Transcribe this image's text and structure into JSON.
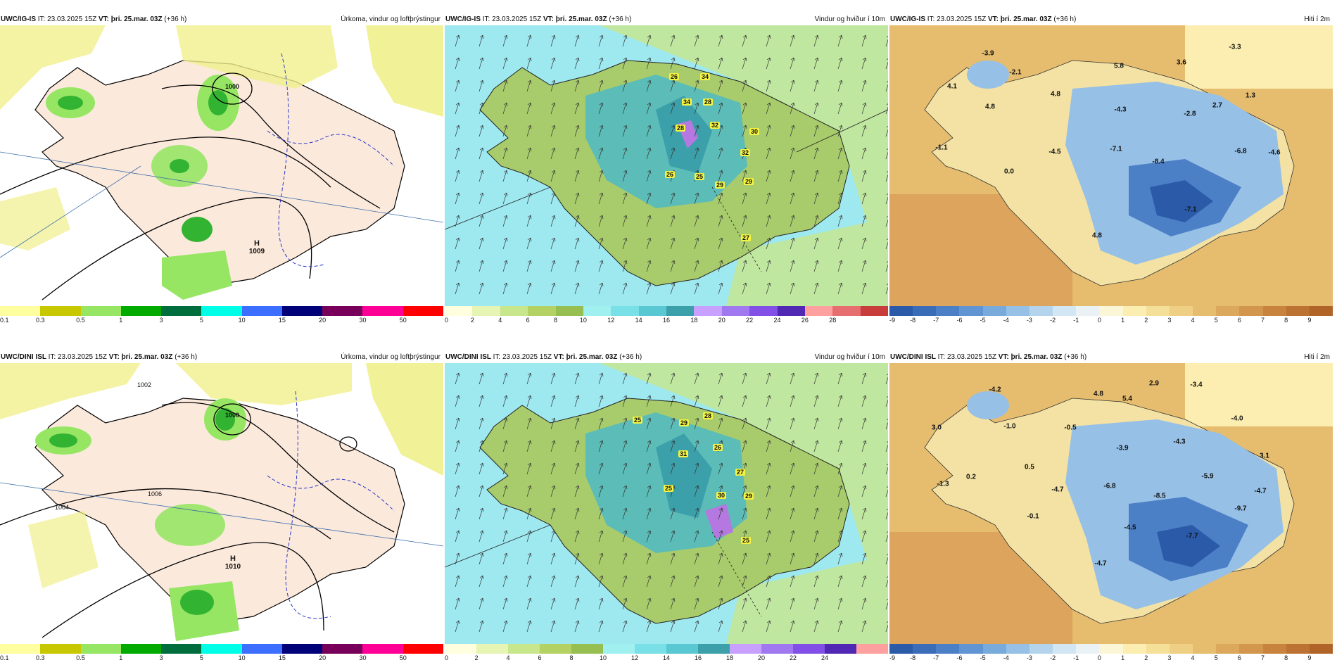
{
  "panels": {
    "top": {
      "precip": {
        "model": "UWC/IG-IS",
        "it_prefix": "IT:",
        "it_value": "23.03.2025 15Z",
        "vt_prefix": "VT:",
        "vt_value": "þri. 25.mar. 03Z",
        "lead": "(+36 h)",
        "title": "Úrkoma, vindur og loftþrýstingur",
        "pressure_high": "H",
        "pressure_high_value": "1009",
        "isobar_1000": "1000"
      },
      "wind": {
        "model": "UWC/IG-IS",
        "it_prefix": "IT:",
        "it_value": "23.03.2025 15Z",
        "vt_prefix": "VT:",
        "vt_value": "þri. 25.mar. 03Z",
        "lead": "(+36 h)",
        "title": "Vindur og hviður í 10m",
        "gust_values": [
          "26",
          "34",
          "34",
          "28",
          "28",
          "32",
          "30",
          "32",
          "26",
          "25",
          "29",
          "29",
          "27"
        ]
      },
      "temp": {
        "model": "UWC/IG-IS",
        "it_prefix": "IT:",
        "it_value": "23.03.2025 15Z",
        "vt_prefix": "VT:",
        "vt_value": "þri. 25.mar. 03Z",
        "lead": "(+36 h)",
        "title": "Hiti í 2m",
        "temp_values": [
          "-3.9",
          "-2.1",
          "5.8",
          "3.6",
          "-3.3",
          "4.1",
          "4.8",
          "-4.3",
          "2.7",
          "1.3",
          "4.8",
          "-2.8",
          "-4.6",
          "-1.1",
          "-4.5",
          "-7.1",
          "-6.8",
          "-8.4",
          "0.0",
          "-7.1",
          "4.8"
        ]
      }
    },
    "bottom": {
      "precip": {
        "model": "UWC/DINI ISL",
        "it_prefix": "IT:",
        "it_value": "23.03.2025 15Z",
        "vt_prefix": "VT:",
        "vt_value": "þri. 25.mar. 03Z",
        "lead": "(+36 h)",
        "title": "Úrkoma, vindur og loftþrýstingur",
        "pressure_high": "H",
        "pressure_high_value": "1010",
        "isobar_1000": "1000",
        "isobar_1002": "1002",
        "isobar_1004": "1004",
        "isobar_1006": "1006"
      },
      "wind": {
        "model": "UWC/DINI ISL",
        "it_prefix": "IT:",
        "it_value": "23.03.2025 15Z",
        "vt_prefix": "VT:",
        "vt_value": "þri. 25.mar. 03Z",
        "lead": "(+36 h)",
        "title": "Vindur og hviður í 10m",
        "gust_values": [
          "25",
          "29",
          "28",
          "31",
          "26",
          "27",
          "25",
          "30",
          "29",
          "25"
        ]
      },
      "temp": {
        "model": "UWC/DINI ISL",
        "it_prefix": "IT:",
        "it_value": "23.03.2025 15Z",
        "vt_prefix": "VT:",
        "vt_value": "þri. 25.mar. 03Z",
        "lead": "(+36 h)",
        "title": "Hiti í 2m",
        "temp_values": [
          "-4.2",
          "4.8",
          "2.9",
          "-3.4",
          "3.0",
          "-1.0",
          "-0.5",
          "5.4",
          "-4.0",
          "-3.9",
          "-4.3",
          "3.1",
          "0.5",
          "0.2",
          "-5.9",
          "-1.3",
          "-4.7",
          "-6.8",
          "-8.5",
          "-4.7",
          "-9.7",
          "-0.1",
          "-4.5",
          "-7.7",
          "-4.7"
        ]
      }
    }
  },
  "colorbars": {
    "precip": {
      "ticks": [
        "0.1",
        "0.3",
        "0.5",
        "1",
        "3",
        "5",
        "10",
        "15",
        "20",
        "30",
        "50"
      ],
      "colors": [
        "#ffff9f",
        "#c8c800",
        "#96e664",
        "#00aa00",
        "#006e3c",
        "#00ffe6",
        "#3c6eff",
        "#000078",
        "#78005a",
        "#ff0096",
        "#ff0000"
      ]
    },
    "wind_top": {
      "ticks": [
        "0",
        "2",
        "4",
        "6",
        "8",
        "10",
        "12",
        "14",
        "16",
        "18",
        "20",
        "22",
        "24",
        "26",
        "28"
      ],
      "colors": [
        "#ffffe0",
        "#e6f5b4",
        "#c8e68c",
        "#b4d264",
        "#96be50",
        "#a0f0f0",
        "#78e0e6",
        "#5ac8d2",
        "#3ca0aa",
        "#c8a0ff",
        "#a078f0",
        "#8250e6",
        "#5028b4",
        "#ffa0a0",
        "#e66e6e",
        "#c83c3c"
      ]
    },
    "wind_bottom": {
      "ticks": [
        "0",
        "2",
        "4",
        "6",
        "8",
        "10",
        "12",
        "14",
        "16",
        "18",
        "20",
        "22",
        "24"
      ],
      "colors": [
        "#ffffe0",
        "#e6f5b4",
        "#c8e68c",
        "#b4d264",
        "#96be50",
        "#a0f0f0",
        "#78e0e6",
        "#5ac8d2",
        "#3ca0aa",
        "#c8a0ff",
        "#a078f0",
        "#8250e6",
        "#5028b4",
        "#ffa0a0"
      ]
    },
    "temp": {
      "ticks": [
        "-9",
        "-8",
        "-7",
        "-6",
        "-5",
        "-4",
        "-3",
        "-2",
        "-1",
        "0",
        "1",
        "2",
        "3",
        "4",
        "5",
        "6",
        "7",
        "8",
        "9"
      ],
      "colors": [
        "#2a5aa8",
        "#3a6cb8",
        "#4c80c6",
        "#6094d2",
        "#78aadc",
        "#96c0e6",
        "#b4d4ee",
        "#d2e6f4",
        "#eaf2f6",
        "#fbf7d6",
        "#fbeeb0",
        "#f5e09a",
        "#efcf84",
        "#e6bc6e",
        "#dca85c",
        "#d2964c",
        "#c8843e",
        "#bc7232",
        "#b06428"
      ]
    }
  },
  "colors": {
    "land_precip": "#fbe9dc",
    "sea_precip": "#ffffff",
    "sea_wind": "#9ee8f0",
    "land_wind_low": "#a8cc6c",
    "land_wind_high": "#4fb8c4",
    "sea_temp_warm": "#dca45c",
    "land_temp_cold": "#5a8ccc",
    "land_temp_mild": "#f3e2a4",
    "isobar": "#000000",
    "isotherm": "#2a38c8",
    "precip_light": "#f0f08c",
    "precip_green": "#32b432"
  }
}
